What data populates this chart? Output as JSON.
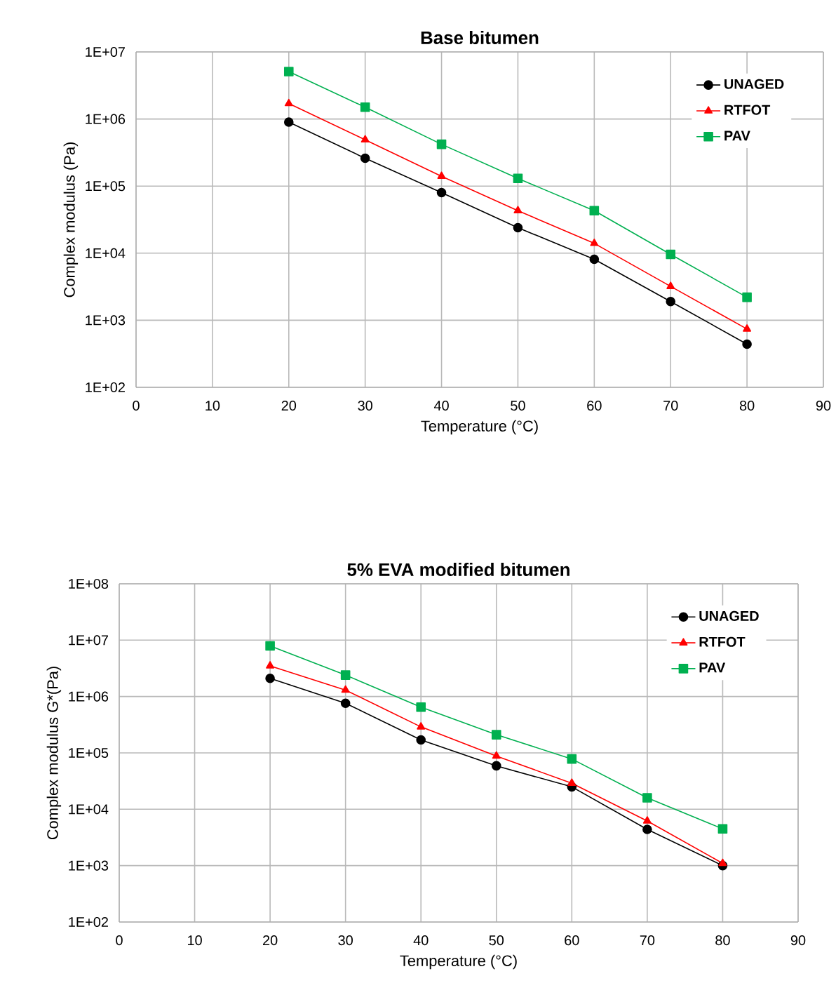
{
  "chart_data": [
    {
      "type": "line",
      "title": "Base bitumen",
      "xlabel": "Temperature  (°C)",
      "ylabel": "Complex modulus (Pa)",
      "x": [
        20,
        30,
        40,
        50,
        60,
        70,
        80
      ],
      "series": [
        {
          "name": "UNAGED",
          "color": "#000000",
          "marker": "circle",
          "values": [
            900000,
            260000,
            80000,
            24000,
            8100,
            1900,
            440
          ]
        },
        {
          "name": "RTFOT",
          "color": "#ff0000",
          "marker": "triangle",
          "values": [
            1700000,
            490000,
            140000,
            43000,
            14000,
            3200,
            740
          ]
        },
        {
          "name": "PAV",
          "color": "#00b050",
          "marker": "square",
          "values": [
            5100000,
            1500000,
            420000,
            130000,
            43000,
            9600,
            2200
          ]
        }
      ],
      "xlim": [
        0,
        90
      ],
      "xticks": [
        0,
        10,
        20,
        30,
        40,
        50,
        60,
        70,
        80,
        90
      ],
      "ylim": [
        100,
        10000000
      ],
      "yticks": [
        {
          "value": 100,
          "label": "1E+02"
        },
        {
          "value": 1000,
          "label": "1E+03"
        },
        {
          "value": 10000,
          "label": "1E+04"
        },
        {
          "value": 100000,
          "label": "1E+05"
        },
        {
          "value": 1000000,
          "label": "1E+06"
        },
        {
          "value": 10000000,
          "label": "1E+07"
        }
      ],
      "log": "y",
      "grid": true,
      "legend": "top right"
    },
    {
      "type": "line",
      "title": "5% EVA modified bitumen",
      "xlabel": "Temperature  (°C)",
      "ylabel": "Complex modulus G*(Pa)",
      "x": [
        20,
        30,
        40,
        50,
        60,
        70,
        80
      ],
      "series": [
        {
          "name": "UNAGED",
          "color": "#000000",
          "marker": "circle",
          "values": [
            2100000,
            760000,
            170000,
            59000,
            25000,
            4400,
            1000
          ]
        },
        {
          "name": "RTFOT",
          "color": "#ff0000",
          "marker": "triangle",
          "values": [
            3500000,
            1300000,
            290000,
            88000,
            29000,
            6200,
            1100
          ]
        },
        {
          "name": "PAV",
          "color": "#00b050",
          "marker": "square",
          "values": [
            7900000,
            2400000,
            650000,
            210000,
            78000,
            16000,
            4500
          ]
        }
      ],
      "xlim": [
        0,
        90
      ],
      "xticks": [
        0,
        10,
        20,
        30,
        40,
        50,
        60,
        70,
        80,
        90
      ],
      "ylim": [
        100,
        100000000
      ],
      "yticks": [
        {
          "value": 100,
          "label": "1E+02"
        },
        {
          "value": 1000,
          "label": "1E+03"
        },
        {
          "value": 10000,
          "label": "1E+04"
        },
        {
          "value": 100000,
          "label": "1E+05"
        },
        {
          "value": 1000000,
          "label": "1E+06"
        },
        {
          "value": 10000000,
          "label": "1E+07"
        },
        {
          "value": 100000000,
          "label": "1E+08"
        }
      ],
      "log": "y",
      "grid": true,
      "legend": "top right"
    }
  ]
}
